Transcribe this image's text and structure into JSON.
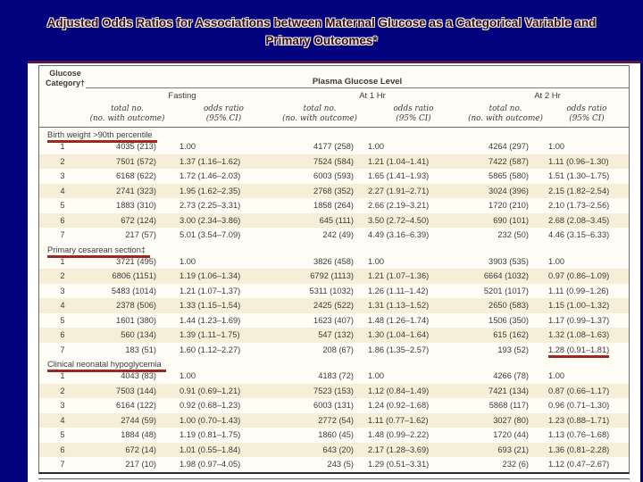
{
  "slide": {
    "title_line1": "Adjusted Odds Ratios for Associations between Maternal Glucose as a Categorical Variable and",
    "title_line2": "Primary Outcomes*"
  },
  "colors": {
    "slide_background": "#02027e",
    "title_text": "#3a0b10",
    "panel_top_border": "#5a1740",
    "annotation_red": "#9e2722",
    "row_stripe": "#f7eed7",
    "table_background": "#fffdf5"
  },
  "table": {
    "stub": [
      "Glucose",
      "Category†"
    ],
    "spanner": "Plasma Glucose Level",
    "groups": [
      "Fasting",
      "At 1 Hr",
      "At 2 Hr"
    ],
    "sub_total": [
      "total no.",
      "(no. with outcome)"
    ],
    "sub_or": [
      "odds ratio",
      "(95% CI)"
    ],
    "sections": [
      {
        "label": "Birth weight >90th percentile",
        "underlined": true,
        "rows": [
          {
            "cells": [
              "1",
              "4035 (213)",
              "1.00",
              "4177 (258)",
              "1.00",
              "4264 (297)",
              "1.00"
            ]
          },
          {
            "cells": [
              "2",
              "7501 (572)",
              "1.37 (1.16–1.62)",
              "7524 (584)",
              "1.21 (1.04–1.41)",
              "7422 (587)",
              "1.11 (0.96–1.30)"
            ]
          },
          {
            "cells": [
              "3",
              "6168 (622)",
              "1.72 (1.46–2.03)",
              "6003 (593)",
              "1.65 (1.41–1.93)",
              "5865 (580)",
              "1.51 (1.30–1.75)"
            ]
          },
          {
            "cells": [
              "4",
              "2741 (323)",
              "1.95 (1.62–2.35)",
              "2768 (352)",
              "2.27 (1.91–2.71)",
              "3024 (396)",
              "2.15 (1.82–2.54)"
            ]
          },
          {
            "cells": [
              "5",
              "1883 (310)",
              "2.73 (2.25–3.31)",
              "1858 (264)",
              "2.66 (2.19–3.21)",
              "1720 (210)",
              "2.10 (1.73–2.56)"
            ]
          },
          {
            "cells": [
              "6",
              "672 (124)",
              "3.00 (2.34–3.86)",
              "645 (111)",
              "3.50 (2.72–4.50)",
              "690 (101)",
              "2.68 (2.08–3.45)"
            ]
          },
          {
            "cells": [
              "7",
              "217 (57)",
              "5.01 (3.54–7.09)",
              "242 (49)",
              "4.49 (3.16–6.39)",
              "232 (50)",
              "4.46 (3.15–6.33)"
            ]
          }
        ]
      },
      {
        "label": "Primary cesarean section‡",
        "underlined": true,
        "rows": [
          {
            "cells": [
              "1",
              "3721 (495)",
              "1.00",
              "3826 (458)",
              "1.00",
              "3903 (535)",
              "1.00"
            ]
          },
          {
            "cells": [
              "2",
              "6806 (1151)",
              "1.19 (1.06–1.34)",
              "6792 (1113)",
              "1.21 (1.07–1.36)",
              "6664 (1032)",
              "0.97 (0.86–1.09)"
            ]
          },
          {
            "cells": [
              "3",
              "5483 (1014)",
              "1.21 (1.07–1.37)",
              "5311 (1032)",
              "1.26 (1.11–1.42)",
              "5201 (1017)",
              "1.11 (0.99–1.26)"
            ]
          },
          {
            "cells": [
              "4",
              "2378 (506)",
              "1.33 (1.15–1.54)",
              "2425 (522)",
              "1.31 (1.13–1.52)",
              "2650 (583)",
              "1.15 (1.00–1.32)"
            ]
          },
          {
            "cells": [
              "5",
              "1601 (380)",
              "1.44 (1.23–1.69)",
              "1623 (407)",
              "1.48 (1.26–1.74)",
              "1506 (350)",
              "1.17 (0.99–1.37)"
            ]
          },
          {
            "cells": [
              "6",
              "560 (134)",
              "1.39 (1.11–1.75)",
              "547 (132)",
              "1.30 (1.04–1.64)",
              "615 (162)",
              "1.32 (1.08–1.63)"
            ]
          },
          {
            "cells": [
              "7",
              "183 (51)",
              "1.60 (1.12–2.27)",
              "208 (67)",
              "1.86 (1.35–2.57)",
              "193 (52)",
              "1.28 (0.91–1.81)"
            ],
            "underline_cell": 6
          }
        ]
      },
      {
        "label": "Clinical neonatal hypoglycemia",
        "underlined": true,
        "rows": [
          {
            "cells": [
              "1",
              "4043 (83)",
              "1.00",
              "4183 (72)",
              "1.00",
              "4266 (78)",
              "1.00"
            ]
          },
          {
            "cells": [
              "2",
              "7503 (144)",
              "0.91 (0.69–1.21)",
              "7523 (153)",
              "1.12 (0.84–1.49)",
              "7421 (134)",
              "0.87 (0.66–1.17)"
            ]
          },
          {
            "cells": [
              "3",
              "6164 (122)",
              "0.92 (0.68–1.23)",
              "6003 (131)",
              "1.24 (0.92–1.68)",
              "5868 (117)",
              "0.96 (0.71–1.30)"
            ]
          },
          {
            "cells": [
              "4",
              "2744 (59)",
              "1.00 (0.70–1.43)",
              "2772 (54)",
              "1.11 (0.77–1.62)",
              "3027 (80)",
              "1.23 (0.88–1.71)"
            ]
          },
          {
            "cells": [
              "5",
              "1884 (48)",
              "1.19 (0.81–1.75)",
              "1860 (45)",
              "1.48 (0.99–2.22)",
              "1720 (44)",
              "1.13 (0.76–1.68)"
            ]
          },
          {
            "cells": [
              "6",
              "672 (14)",
              "1.01 (0.55–1.84)",
              "643 (20)",
              "2.17 (1.28–3.69)",
              "693 (21)",
              "1.36 (0.81–2.28)"
            ]
          },
          {
            "cells": [
              "7",
              "217 (10)",
              "1.98 (0.97–4.05)",
              "243 (5)",
              "1.29 (0.51–3.31)",
              "232 (6)",
              "1.12 (0.47–2.67)"
            ]
          }
        ]
      }
    ]
  }
}
